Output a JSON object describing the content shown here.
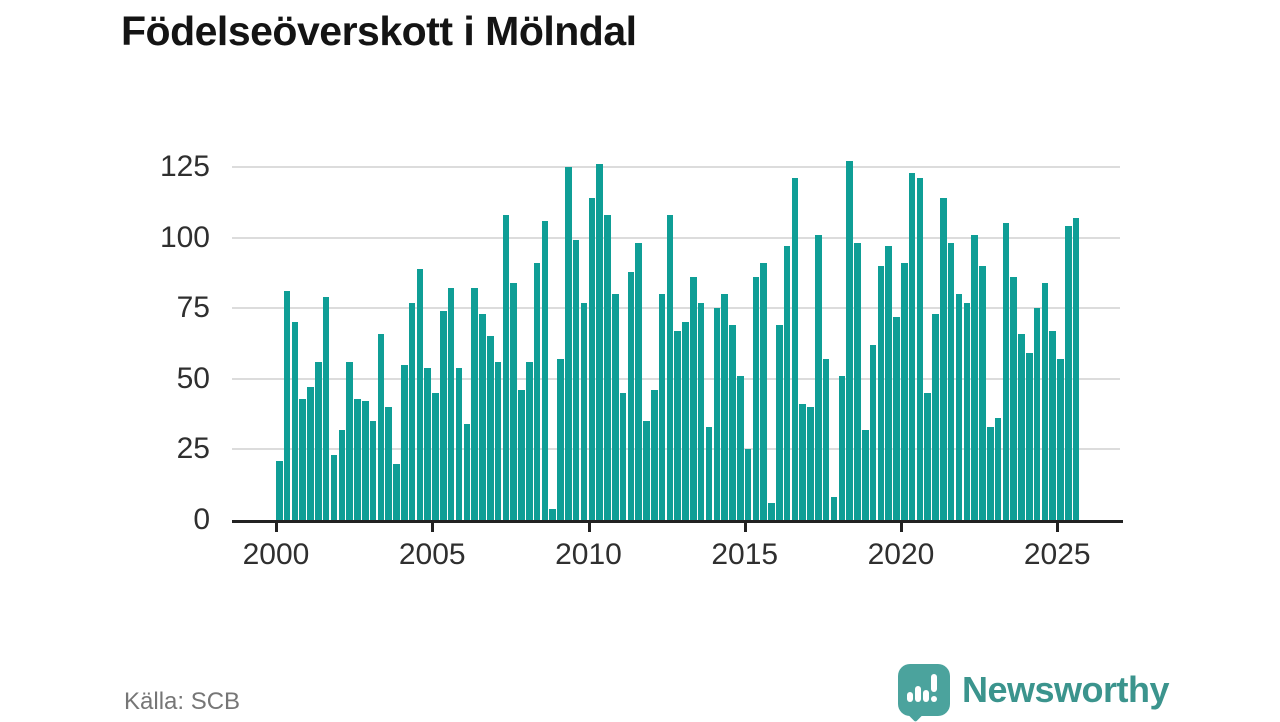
{
  "title": "Födelseöverskott i Mölndal",
  "source": "Källa: SCB",
  "logo": {
    "text": "Newsworthy",
    "mark_color": "#4BA39D",
    "text_color": "#3B948D"
  },
  "chart_data": {
    "type": "bar",
    "title": "Födelseöverskott i Mölndal",
    "frequency": "quarterly",
    "start_period": "2000 Q1",
    "end_period": "2025 Q3",
    "values": [
      21,
      81,
      70,
      43,
      47,
      56,
      79,
      23,
      32,
      56,
      43,
      42,
      35,
      66,
      40,
      20,
      55,
      77,
      89,
      54,
      45,
      74,
      82,
      54,
      34,
      82,
      73,
      65,
      56,
      108,
      84,
      46,
      56,
      91,
      106,
      4,
      57,
      125,
      99,
      77,
      114,
      126,
      108,
      80,
      45,
      88,
      98,
      35,
      46,
      80,
      108,
      67,
      70,
      86,
      77,
      33,
      75,
      80,
      69,
      51,
      25,
      86,
      91,
      6,
      69,
      97,
      121,
      41,
      40,
      101,
      57,
      8,
      51,
      127,
      98,
      32,
      62,
      90,
      97,
      72,
      91,
      123,
      121,
      45,
      73,
      114,
      98,
      80,
      77,
      101,
      90,
      33,
      36,
      105,
      86,
      66,
      59,
      75,
      84,
      67,
      57,
      104,
      107
    ],
    "bar_color": "#0f9e96",
    "ylim": [
      0,
      125
    ],
    "yticks": [
      0,
      25,
      50,
      75,
      100,
      125
    ],
    "xticks": [
      "2000",
      "2005",
      "2010",
      "2015",
      "2020",
      "2025"
    ],
    "grid": "horizontal",
    "legend": "none"
  }
}
